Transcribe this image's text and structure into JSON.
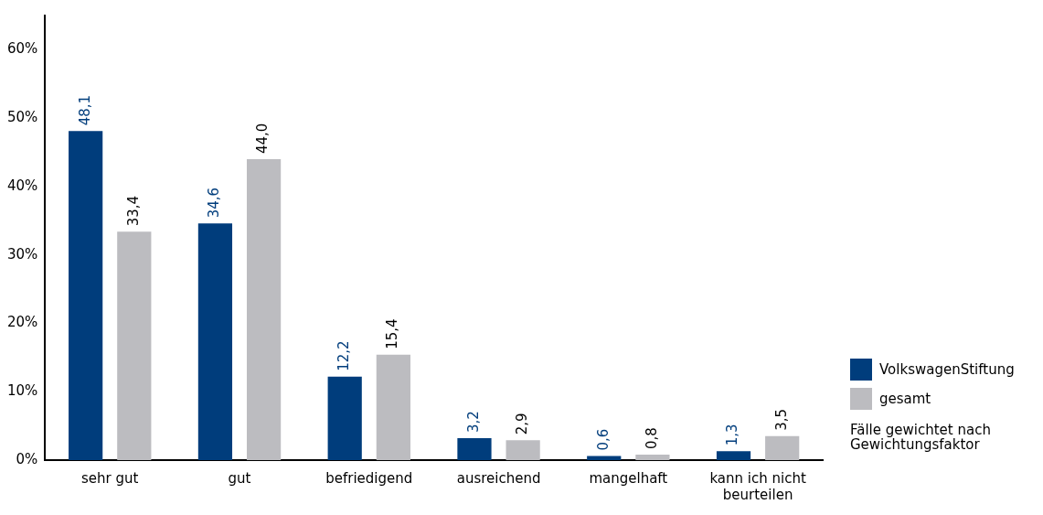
{
  "chart_data": {
    "type": "bar",
    "categories": [
      "sehr gut",
      "gut",
      "befriedigend",
      "ausreichend",
      "mangelhaft",
      "kann ich nicht beurteilen"
    ],
    "series": [
      {
        "name": "VolkswagenStiftung",
        "color": "#003d7c",
        "values": [
          48.1,
          34.6,
          12.2,
          3.2,
          0.6,
          1.3
        ],
        "value_labels": [
          "48,1",
          "34,6",
          "12,2",
          "3,2",
          "0,6",
          "1,3"
        ]
      },
      {
        "name": "gesamt",
        "color": "#bcbcc0",
        "values": [
          33.4,
          44.0,
          15.4,
          2.9,
          0.8,
          3.5
        ],
        "value_labels": [
          "33,4",
          "44,0",
          "15,4",
          "2,9",
          "0,8",
          "3,5"
        ]
      }
    ],
    "ylim": [
      0,
      65
    ],
    "yticks": [
      {
        "value": 0,
        "label": "0%"
      },
      {
        "value": 10,
        "label": "10%"
      },
      {
        "value": 20,
        "label": "20%"
      },
      {
        "value": 30,
        "label": "30%"
      },
      {
        "value": 40,
        "label": "40%"
      },
      {
        "value": 50,
        "label": "50%"
      },
      {
        "value": 60,
        "label": "60%"
      }
    ],
    "grid": false,
    "legend": "right",
    "annotations": [
      "Fälle gewichtet nach Gewichtungsfaktor"
    ]
  }
}
